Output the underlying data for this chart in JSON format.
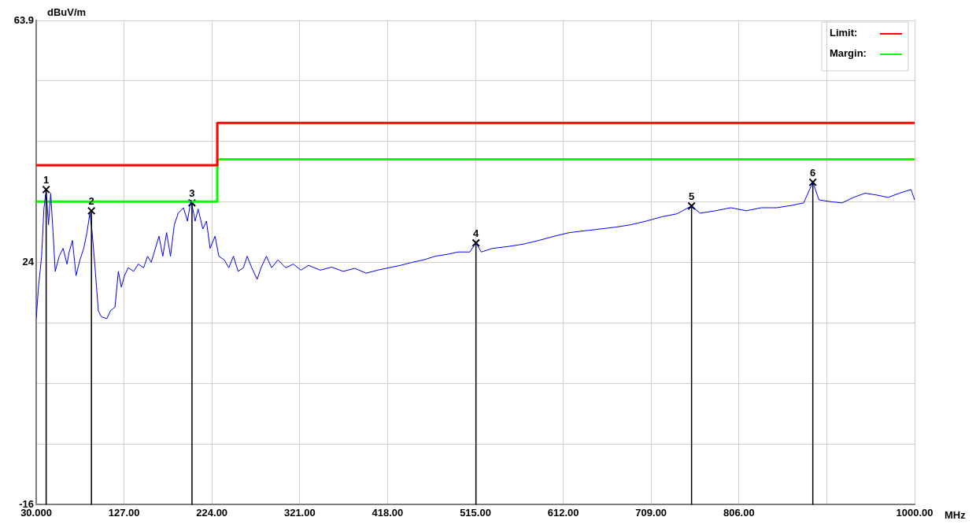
{
  "chart_data": {
    "type": "line",
    "ylabel": "dBuV/m",
    "xlabel": "MHz",
    "xlim": [
      30,
      1000
    ],
    "ylim": [
      -16,
      63.9
    ],
    "xticks": [
      {
        "value": 30,
        "label": "30.000"
      },
      {
        "value": 127,
        "label": "127.00"
      },
      {
        "value": 224,
        "label": "224.00"
      },
      {
        "value": 321,
        "label": "321.00"
      },
      {
        "value": 418,
        "label": "418.00"
      },
      {
        "value": 515,
        "label": "515.00"
      },
      {
        "value": 612,
        "label": "612.00"
      },
      {
        "value": 709,
        "label": "709.00"
      },
      {
        "value": 806,
        "label": "806.00"
      },
      {
        "value": 903,
        "label": null
      },
      {
        "value": 1000,
        "label": "1000.00"
      }
    ],
    "yticks": [
      -16,
      {
        "value": -6,
        "label": null
      },
      {
        "value": 4,
        "label": null
      },
      {
        "value": 14,
        "label": null
      },
      24,
      {
        "value": 34,
        "label": null
      },
      {
        "value": 44,
        "label": null
      },
      {
        "value": 54,
        "label": null
      },
      63.9
    ],
    "grid": true,
    "legend": "top right",
    "series": [
      {
        "type": "line",
        "color": "#0000ff",
        "x": [
          30,
          32.5,
          36,
          38.5,
          41,
          43.6,
          46,
          48.6,
          51,
          55.4,
          59.7,
          64,
          66.4,
          70,
          74,
          78.3,
          82.5,
          86,
          89.3,
          91.8,
          95.3,
          98.6,
          102,
          108,
          112,
          117,
          120.7,
          124,
          127.5,
          131.7,
          137.6,
          142.7,
          148.6,
          153,
          157,
          165.6,
          169.8,
          174,
          178.3,
          182.5,
          186.8,
          192.7,
          197,
          201,
          205.5,
          208.8,
          214,
          218,
          222,
          227.5,
          231.7,
          237.6,
          242.7,
          247.8,
          253,
          258.8,
          263,
          268,
          274,
          278.3,
          284.2,
          290,
          297,
          305.4,
          314,
          322.4,
          330.8,
          343.6,
          356.3,
          369,
          381.7,
          394.4,
          407,
          419.8,
          432.5,
          445.3,
          458,
          470.7,
          483.4,
          496,
          508.8,
          515.6,
          521.5,
          534,
          551,
          568,
          585,
          602,
          619,
          636,
          653,
          670,
          686.8,
          703.7,
          720.7,
          737.6,
          753.7,
          763,
          780,
          797,
          814,
          830.8,
          847.8,
          864.7,
          877.5,
          887.6,
          894.4,
          907,
          919.8,
          932.5,
          945.3,
          958,
          970.7,
          983.4,
          996,
          1000
        ],
        "values": [
          14.7,
          19.9,
          25,
          32.8,
          36,
          30.2,
          35.4,
          28.9,
          22.5,
          25,
          26.3,
          23.7,
          25.7,
          27.6,
          21.8,
          24.4,
          26.3,
          28.9,
          32.1,
          28.9,
          22.5,
          16,
          15,
          14.7,
          16,
          16.6,
          22.5,
          19.9,
          21.8,
          23.1,
          22.5,
          23.7,
          23.1,
          25,
          24,
          28.3,
          25,
          28.9,
          25,
          30.2,
          32.1,
          33,
          30.8,
          34.3,
          30.8,
          32.8,
          29.5,
          30.8,
          26.3,
          28.3,
          25,
          24.4,
          23.1,
          25,
          22.5,
          23.1,
          25,
          23.1,
          21.2,
          23.1,
          25,
          23.1,
          24.4,
          23.1,
          23.7,
          22.7,
          23.5,
          22.7,
          23.2,
          22.5,
          23,
          22.2,
          22.7,
          23.1,
          23.5,
          24,
          24.4,
          25,
          25.3,
          25.7,
          25.7,
          27.2,
          25.7,
          26.3,
          26.6,
          27,
          27.6,
          28.3,
          28.9,
          29.2,
          29.5,
          29.8,
          30.2,
          30.8,
          31.5,
          32,
          33.3,
          32.1,
          32.5,
          33,
          32.5,
          33,
          33,
          33.4,
          33.8,
          37.2,
          34.3,
          34,
          33.8,
          34.7,
          35.4,
          35.1,
          34.7,
          35.4,
          36,
          34.3
        ]
      },
      {
        "type": "step",
        "name": "Limit:",
        "color": "#ff0000",
        "x": [
          30,
          230,
          1000
        ],
        "values": [
          40,
          47,
          47
        ]
      },
      {
        "type": "step",
        "name": "Margin:",
        "color": "#00ff00",
        "x": [
          30,
          230,
          1000
        ],
        "values": [
          34,
          41,
          41
        ]
      },
      {
        "type": "lollipop",
        "marker": "cross",
        "color": "#000000",
        "x": [
          41,
          91,
          202,
          515.6,
          753.7,
          887.6
        ],
        "values": [
          36,
          32.5,
          33.8,
          27.2,
          33.3,
          37.2
        ]
      }
    ],
    "annotations": [
      {
        "text": "1",
        "x": 41,
        "y": 36
      },
      {
        "text": "2",
        "x": 91,
        "y": 32.5
      },
      {
        "text": "3",
        "x": 202,
        "y": 33.8
      },
      {
        "text": "4",
        "x": 515.6,
        "y": 27.2
      },
      {
        "text": "5",
        "x": 753.7,
        "y": 33.3
      },
      {
        "text": "6",
        "x": 887.6,
        "y": 37.2
      }
    ]
  }
}
